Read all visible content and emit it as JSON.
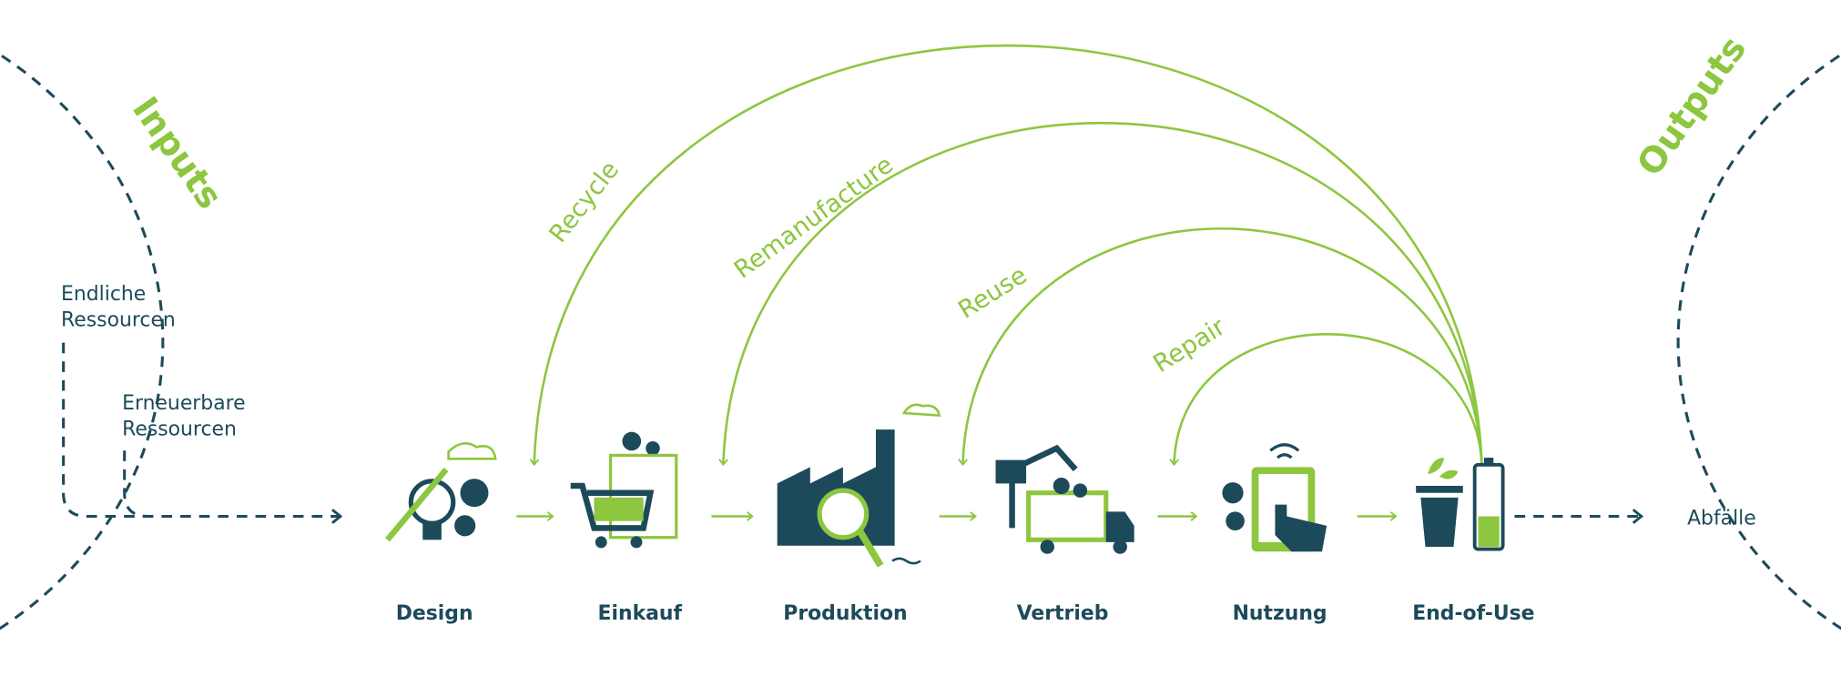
{
  "inputs": {
    "title": "Inputs",
    "items": [
      [
        "Endliche",
        "Ressourcen"
      ],
      [
        "Erneuerbare",
        "Ressourcen"
      ]
    ]
  },
  "loops": [
    "Recycle",
    "Remanufacture",
    "Reuse",
    "Repair"
  ],
  "stages": [
    "Design",
    "Einkauf",
    "Produktion",
    "Vertrieb",
    "Nutzung",
    "End-of-Use"
  ],
  "outputs": {
    "title": "Outputs",
    "items": [
      "Abfälle"
    ]
  }
}
